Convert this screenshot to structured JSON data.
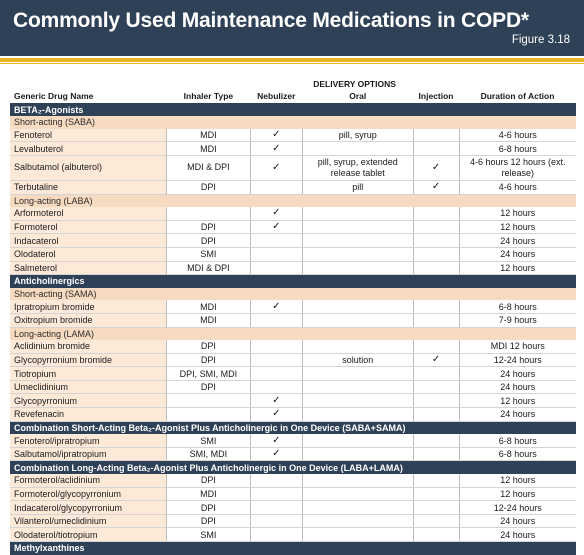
{
  "header": {
    "title": "Commonly Used Maintenance Medications in COPD*",
    "figure": "Figure 3.18"
  },
  "table": {
    "delivery_options": "DELIVERY OPTIONS",
    "columns": [
      "Generic Drug Name",
      "Inhaler Type",
      "Nebulizer",
      "Oral",
      "Injection",
      "Duration of Action"
    ],
    "sections": [
      {
        "title": "BETA₂-Agonists",
        "groups": [
          {
            "title": "Short-acting (SABA)",
            "rows": [
              {
                "name": "Fenoterol",
                "inhaler": "MDI",
                "nebulizer": "✓",
                "oral": "pill, syrup",
                "injection": "",
                "duration": "4-6 hours"
              },
              {
                "name": "Levalbuterol",
                "inhaler": "MDI",
                "nebulizer": "✓",
                "oral": "",
                "injection": "",
                "duration": "6-8 hours"
              },
              {
                "name": "Salbutamol (albuterol)",
                "inhaler": "MDI & DPI",
                "nebulizer": "✓",
                "oral": "pill, syrup, extended release tablet",
                "injection": "✓",
                "duration": "4-6 hours 12 hours (ext. release)"
              },
              {
                "name": "Terbutaline",
                "inhaler": "DPI",
                "nebulizer": "",
                "oral": "pill",
                "injection": "✓",
                "duration": "4-6 hours"
              }
            ]
          },
          {
            "title": "Long-acting (LABA)",
            "rows": [
              {
                "name": "Arformoterol",
                "inhaler": "",
                "nebulizer": "✓",
                "oral": "",
                "injection": "",
                "duration": "12 hours"
              },
              {
                "name": "Formoterol",
                "inhaler": "DPI",
                "nebulizer": "✓",
                "oral": "",
                "injection": "",
                "duration": "12 hours"
              },
              {
                "name": "Indacaterol",
                "inhaler": "DPI",
                "nebulizer": "",
                "oral": "",
                "injection": "",
                "duration": "24 hours"
              },
              {
                "name": "Olodaterol",
                "inhaler": "SMI",
                "nebulizer": "",
                "oral": "",
                "injection": "",
                "duration": "24 hours"
              },
              {
                "name": "Salmeterol",
                "inhaler": "MDI & DPI",
                "nebulizer": "",
                "oral": "",
                "injection": "",
                "duration": "12 hours"
              }
            ]
          }
        ]
      },
      {
        "title": "Anticholinergics",
        "groups": [
          {
            "title": "Short-acting (SAMA)",
            "rows": [
              {
                "name": "Ipratropium bromide",
                "inhaler": "MDI",
                "nebulizer": "✓",
                "oral": "",
                "injection": "",
                "duration": "6-8 hours"
              },
              {
                "name": "Oxitropium bromide",
                "inhaler": "MDI",
                "nebulizer": "",
                "oral": "",
                "injection": "",
                "duration": "7-9 hours"
              }
            ]
          },
          {
            "title": "Long-acting (LAMA)",
            "rows": [
              {
                "name": "Aclidinium bromide",
                "inhaler": "DPI",
                "nebulizer": "",
                "oral": "",
                "injection": "",
                "duration": "MDI 12 hours"
              },
              {
                "name": "Glycopyrronium bromide",
                "inhaler": "DPI",
                "nebulizer": "",
                "oral": "solution",
                "injection": "✓",
                "duration": "12-24 hours"
              },
              {
                "name": "Tiotropium",
                "inhaler": "DPI, SMI, MDI",
                "nebulizer": "",
                "oral": "",
                "injection": "",
                "duration": "24 hours"
              },
              {
                "name": "Umeclidinium",
                "inhaler": "DPI",
                "nebulizer": "",
                "oral": "",
                "injection": "",
                "duration": "24 hours"
              },
              {
                "name": "Glycopyrronium",
                "inhaler": "",
                "nebulizer": "✓",
                "oral": "",
                "injection": "",
                "duration": "12 hours"
              },
              {
                "name": "Revefenacin",
                "inhaler": "",
                "nebulizer": "✓",
                "oral": "",
                "injection": "",
                "duration": "24 hours"
              }
            ]
          }
        ]
      },
      {
        "title": "Combination Short-Acting Beta₂-Agonist Plus Anticholinergic in One Device (SABA+SAMA)",
        "groups": [
          {
            "title": "",
            "rows": [
              {
                "name": "Fenoterol/ipratropium",
                "inhaler": "SMI",
                "nebulizer": "✓",
                "oral": "",
                "injection": "",
                "duration": "6-8 hours"
              },
              {
                "name": "Salbutamol/ipratropium",
                "inhaler": "SMI, MDI",
                "nebulizer": "✓",
                "oral": "",
                "injection": "",
                "duration": "6-8 hours"
              }
            ]
          }
        ]
      },
      {
        "title": "Combination Long-Acting Beta₂-Agonist Plus Anticholinergic in One Device (LABA+LAMA)",
        "groups": [
          {
            "title": "",
            "rows": [
              {
                "name": "Formoterol/aclidinium",
                "inhaler": "DPI",
                "nebulizer": "",
                "oral": "",
                "injection": "",
                "duration": "12 hours"
              },
              {
                "name": "Formoterol/glycopyrronium",
                "inhaler": "MDI",
                "nebulizer": "",
                "oral": "",
                "injection": "",
                "duration": "12 hours"
              },
              {
                "name": "Indacaterol/glycopyrronium",
                "inhaler": "DPI",
                "nebulizer": "",
                "oral": "",
                "injection": "",
                "duration": "12-24 hours"
              },
              {
                "name": "Vilanterol/umeclidinium",
                "inhaler": "DPI",
                "nebulizer": "",
                "oral": "",
                "injection": "",
                "duration": "24 hours"
              },
              {
                "name": "Olodaterol/tiotropium",
                "inhaler": "SMI",
                "nebulizer": "",
                "oral": "",
                "injection": "",
                "duration": "24 hours"
              }
            ]
          }
        ]
      },
      {
        "title": "Methylxanthines",
        "groups": []
      }
    ]
  }
}
